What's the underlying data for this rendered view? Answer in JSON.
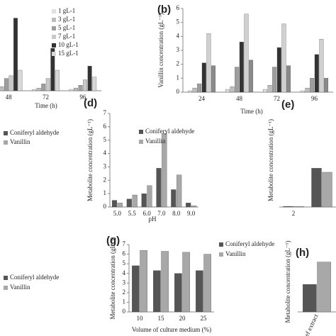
{
  "chart_data": [
    {
      "type": "bar",
      "categories": [
        "48",
        "72",
        "96"
      ],
      "x_label": "Time (h)",
      "ylim": [
        0,
        6
      ],
      "series": [
        {
          "name": "1 gL-1",
          "color": "#e0e0e0",
          "values": [
            0.1,
            0.1,
            0.1
          ]
        },
        {
          "name": "3 gL-1",
          "color": "#bdbdbd",
          "values": [
            0.3,
            0.2,
            0.2
          ]
        },
        {
          "name": "5 gL-1",
          "color": "#9e9e9e",
          "values": [
            0.9,
            0.5,
            0.4
          ]
        },
        {
          "name": "7 gL-1",
          "color": "#c8c8c8",
          "values": [
            1.1,
            0.9,
            0.8
          ]
        },
        {
          "name": "10 gL-1",
          "color": "#333333",
          "values": [
            5.3,
            3.1,
            1.8
          ]
        },
        {
          "name": "15 gL-1",
          "color": "#d8d8d8",
          "values": [
            1.5,
            1.5,
            1.0
          ]
        }
      ]
    },
    {
      "type": "bar",
      "label": "(b)",
      "categories": [
        "24",
        "48",
        "72",
        "96"
      ],
      "x_label": "Time (h)",
      "y_label": "Vanillin concentration (gL⁻¹)",
      "ylim": [
        0,
        6
      ],
      "yticks": [
        0,
        1,
        2,
        3,
        4,
        5,
        6
      ],
      "series": [
        {
          "color": "#e0e0e0",
          "values": [
            0.1,
            0.2,
            0.2,
            0.1
          ]
        },
        {
          "color": "#bdbdbd",
          "values": [
            0.3,
            0.4,
            0.5,
            0.3
          ]
        },
        {
          "color": "#9e9e9e",
          "values": [
            0.6,
            1.8,
            1.8,
            1.0
          ]
        },
        {
          "color": "#333333",
          "values": [
            2.1,
            3.6,
            3.2,
            2.7
          ]
        },
        {
          "color": "#d0d0d0",
          "values": [
            4.2,
            5.6,
            4.9,
            3.8
          ]
        },
        {
          "color": "#8a8a8a",
          "values": [
            1.9,
            2.3,
            1.9,
            1.0
          ]
        }
      ]
    },
    {
      "type": "legend",
      "series": [
        {
          "name": "Coniferyl aldehyde",
          "color": "#555555"
        },
        {
          "name": "Vanillin",
          "color": "#a8a8a8"
        }
      ]
    },
    {
      "type": "bar",
      "label": "(d)",
      "categories": [
        "5.0",
        "5.5",
        "6.0",
        "7.0",
        "8.0",
        "9.0"
      ],
      "x_label": "pH",
      "y_label": "Metabolite concentration (gL⁻¹)",
      "ylim": [
        0,
        7
      ],
      "yticks": [
        0,
        1,
        2,
        3,
        4,
        5,
        6,
        7
      ],
      "series": [
        {
          "name": "Coniferyl aldehyde",
          "color": "#555555",
          "values": [
            0.5,
            0.6,
            1.0,
            2.9,
            1.3,
            0.3
          ]
        },
        {
          "name": "Vanillin",
          "color": "#a8a8a8",
          "values": [
            0.3,
            0.9,
            1.6,
            5.5,
            2.4,
            0.1
          ]
        }
      ]
    },
    {
      "type": "bar",
      "label": "(e)",
      "categories": [
        "2",
        null
      ],
      "y_label": "Metabolite concentration (gL⁻¹)",
      "ylim": [
        0,
        7
      ],
      "series": [
        {
          "color": "#555555",
          "values": [
            0.05,
            2.9
          ]
        },
        {
          "color": "#a8a8a8",
          "values": [
            0.05,
            2.6
          ]
        }
      ]
    },
    {
      "type": "legend",
      "series": [
        {
          "name": "Coniferyl aldehyde",
          "color": "#555555"
        },
        {
          "name": "Vanillin",
          "color": "#a8a8a8"
        }
      ]
    },
    {
      "type": "bar",
      "label": "(g)",
      "categories": [
        "10",
        "15",
        "20",
        "25"
      ],
      "x_label": "Volume of culture medium (%)",
      "y_label": "Metabolite concentration (gL⁻¹)",
      "ylim": [
        0,
        7
      ],
      "yticks": [
        0,
        1,
        2,
        3,
        4,
        5,
        6,
        7
      ],
      "series": [
        {
          "name": "Coniferyl aldehyde",
          "color": "#555555",
          "values": [
            4.8,
            4.3,
            4.0,
            4.3
          ]
        },
        {
          "name": "Vanillin",
          "color": "#a8a8a8",
          "values": [
            6.4,
            6.3,
            6.2,
            6.0
          ]
        }
      ]
    },
    {
      "type": "bar",
      "label": "(h)",
      "categories": [
        "Beef extract"
      ],
      "y_label": "Metabolite concentration (gL⁻¹)",
      "ylim": [
        0,
        7
      ],
      "series": [
        {
          "color": "#555555",
          "values": [
            3.2
          ]
        },
        {
          "color": "#a8a8a8",
          "values": [
            5.8
          ]
        }
      ]
    }
  ]
}
